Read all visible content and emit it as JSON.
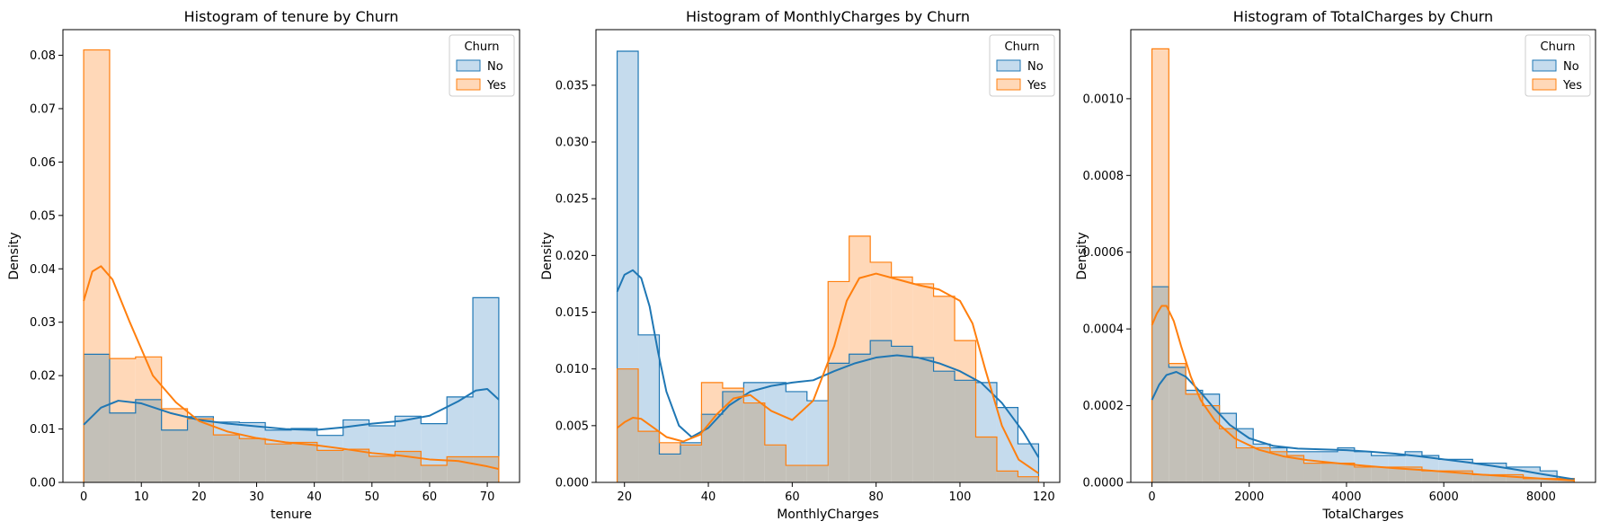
{
  "colors": {
    "no": "#1f77b4",
    "yes": "#ff7f0e",
    "no_fill": "#c5dbed",
    "yes_fill": "#ffd8b8",
    "overlap_fill": "#c3c0b8"
  },
  "chart_data": [
    {
      "type": "histogram",
      "title": "Histogram of tenure by Churn",
      "xlabel": "tenure",
      "ylabel": "Density",
      "xlim": [
        -3.6,
        75.6
      ],
      "ylim": [
        0,
        0.0848
      ],
      "xticks": [
        0,
        10,
        20,
        30,
        40,
        50,
        60,
        70
      ],
      "yticks": [
        0.0,
        0.01,
        0.02,
        0.03,
        0.04,
        0.05,
        0.06,
        0.07,
        0.08
      ],
      "ytick_decimals": 2,
      "legend": {
        "title": "Churn",
        "entries": [
          "No",
          "Yes"
        ],
        "position": "top-right"
      },
      "series": [
        {
          "name": "No",
          "color": "#1f77b4",
          "bins": [
            0,
            4.5,
            9,
            13.5,
            18,
            22.5,
            27,
            31.5,
            36,
            40.5,
            45,
            49.5,
            54,
            58.5,
            63,
            67.5,
            72
          ],
          "density": [
            0.024,
            0.013,
            0.0155,
            0.0098,
            0.0123,
            0.0113,
            0.0112,
            0.0098,
            0.0101,
            0.0088,
            0.0117,
            0.0106,
            0.0124,
            0.011,
            0.016,
            0.0346
          ],
          "kde_x": [
            0,
            3,
            6,
            10,
            15,
            20,
            25,
            30,
            35,
            40,
            45,
            50,
            55,
            60,
            65,
            68,
            70,
            72
          ],
          "kde_y": [
            0.0108,
            0.014,
            0.0153,
            0.0148,
            0.013,
            0.0117,
            0.011,
            0.0105,
            0.01,
            0.0098,
            0.0103,
            0.011,
            0.0115,
            0.0125,
            0.0152,
            0.0172,
            0.0175,
            0.0155
          ]
        },
        {
          "name": "Yes",
          "color": "#ff7f0e",
          "bins": [
            0,
            4.5,
            9,
            13.5,
            18,
            22.5,
            27,
            31.5,
            36,
            40.5,
            45,
            49.5,
            54,
            58.5,
            63,
            67.5,
            72
          ],
          "density": [
            0.081,
            0.0232,
            0.0235,
            0.0138,
            0.0119,
            0.0089,
            0.0082,
            0.0072,
            0.0075,
            0.006,
            0.0062,
            0.0049,
            0.0058,
            0.0032,
            0.0048,
            0.0048
          ],
          "kde_x": [
            0,
            1.5,
            3,
            5,
            8,
            12,
            16,
            20,
            25,
            30,
            35,
            40,
            45,
            50,
            55,
            60,
            65,
            70,
            72
          ],
          "kde_y": [
            0.034,
            0.0395,
            0.0405,
            0.038,
            0.03,
            0.02,
            0.015,
            0.0115,
            0.0095,
            0.0083,
            0.0075,
            0.007,
            0.0063,
            0.0055,
            0.005,
            0.0043,
            0.004,
            0.003,
            0.0025
          ]
        }
      ]
    },
    {
      "type": "histogram",
      "title": "Histogram of MonthlyCharges by Churn",
      "xlabel": "MonthlyCharges",
      "ylabel": "Density",
      "xlim": [
        13.2,
        123.8
      ],
      "ylim": [
        0,
        0.0399
      ],
      "xticks": [
        20,
        40,
        60,
        80,
        100,
        120
      ],
      "yticks": [
        0.0,
        0.005,
        0.01,
        0.015,
        0.02,
        0.025,
        0.03,
        0.035
      ],
      "ytick_decimals": 3,
      "legend": {
        "title": "Churn",
        "entries": [
          "No",
          "Yes"
        ],
        "position": "top-right"
      },
      "series": [
        {
          "name": "No",
          "color": "#1f77b4",
          "bins": [
            18.25,
            23.28,
            28.31,
            33.34,
            38.37,
            43.4,
            48.43,
            53.46,
            58.49,
            63.52,
            68.55,
            73.58,
            78.61,
            83.64,
            88.67,
            93.7,
            98.73,
            103.76,
            108.79,
            113.82,
            118.75
          ],
          "density": [
            0.038,
            0.013,
            0.0025,
            0.0035,
            0.006,
            0.008,
            0.0088,
            0.0088,
            0.008,
            0.0072,
            0.0105,
            0.0113,
            0.0125,
            0.012,
            0.011,
            0.0098,
            0.009,
            0.0088,
            0.0066,
            0.0034
          ],
          "kde_x": [
            18.25,
            20,
            22,
            24,
            26,
            28,
            30,
            33,
            36,
            40,
            45,
            50,
            55,
            60,
            65,
            70,
            75,
            80,
            85,
            90,
            95,
            100,
            105,
            110,
            115,
            118.75
          ],
          "kde_y": [
            0.0168,
            0.0183,
            0.0187,
            0.018,
            0.0155,
            0.0115,
            0.008,
            0.005,
            0.004,
            0.0048,
            0.0068,
            0.008,
            0.0085,
            0.0088,
            0.009,
            0.0098,
            0.0105,
            0.011,
            0.0112,
            0.011,
            0.0105,
            0.0098,
            0.0088,
            0.007,
            0.0045,
            0.0022
          ]
        },
        {
          "name": "Yes",
          "color": "#ff7f0e",
          "bins": [
            18.25,
            23.28,
            28.31,
            33.34,
            38.37,
            43.4,
            48.43,
            53.46,
            58.49,
            63.52,
            68.55,
            73.58,
            78.61,
            83.64,
            88.67,
            93.7,
            98.73,
            103.76,
            108.79,
            113.82,
            118.75
          ],
          "density": [
            0.01,
            0.0045,
            0.0035,
            0.0033,
            0.0088,
            0.0083,
            0.007,
            0.0033,
            0.0015,
            0.0015,
            0.0177,
            0.0217,
            0.0194,
            0.0181,
            0.0175,
            0.0164,
            0.0125,
            0.004,
            0.001,
            0.0005
          ],
          "kde_x": [
            18.25,
            20,
            22,
            24,
            27,
            30,
            34,
            38,
            42,
            46,
            50,
            55,
            60,
            65,
            70,
            73,
            76,
            80,
            85,
            90,
            95,
            100,
            103,
            106,
            110,
            114,
            118.75
          ],
          "kde_y": [
            0.0048,
            0.0053,
            0.0057,
            0.0056,
            0.0048,
            0.004,
            0.0036,
            0.0042,
            0.006,
            0.0074,
            0.0077,
            0.0063,
            0.0055,
            0.0072,
            0.012,
            0.016,
            0.018,
            0.0184,
            0.0179,
            0.0174,
            0.017,
            0.016,
            0.014,
            0.01,
            0.005,
            0.002,
            0.0008
          ]
        }
      ]
    },
    {
      "type": "histogram",
      "title": "Histogram of TotalCharges by Churn",
      "xlabel": "TotalCharges",
      "ylabel": "Density",
      "xlim": [
        -435,
        9120
      ],
      "ylim": [
        0,
        0.00118
      ],
      "xticks": [
        0,
        2000,
        4000,
        6000,
        8000
      ],
      "yticks": [
        0.0,
        0.0002,
        0.0004,
        0.0006,
        0.0008,
        0.001
      ],
      "ytick_decimals": 4,
      "legend": {
        "title": "Churn",
        "entries": [
          "No",
          "Yes"
        ],
        "position": "top-right"
      },
      "series": [
        {
          "name": "No",
          "color": "#1f77b4",
          "bins": [
            0,
            347,
            694,
            1041,
            1388,
            1735,
            2082,
            2429,
            2776,
            3123,
            3470,
            3817,
            4164,
            4511,
            4858,
            5205,
            5552,
            5899,
            6246,
            6593,
            6940,
            7287,
            7634,
            7981,
            8328,
            8684
          ],
          "density": [
            0.00051,
            0.0003,
            0.00024,
            0.00023,
            0.00018,
            0.00014,
            0.0001,
            9e-05,
            8e-05,
            8e-05,
            8e-05,
            9e-05,
            8e-05,
            7e-05,
            7e-05,
            8e-05,
            7e-05,
            6e-05,
            6e-05,
            5e-05,
            5e-05,
            4e-05,
            4e-05,
            3e-05,
            1e-05
          ],
          "kde_x": [
            0,
            150,
            300,
            500,
            700,
            1000,
            1300,
            1600,
            2000,
            2500,
            3000,
            3500,
            4000,
            4500,
            5000,
            5500,
            6000,
            6500,
            7000,
            7500,
            8000,
            8684
          ],
          "kde_y": [
            0.000215,
            0.000255,
            0.00028,
            0.000288,
            0.000275,
            0.000235,
            0.00019,
            0.00015,
            0.000115,
            9.5e-05,
            8.8e-05,
            8.6e-05,
            8.4e-05,
            8e-05,
            7.5e-05,
            6.8e-05,
            6e-05,
            5.2e-05,
            4.3e-05,
            3.3e-05,
            2.2e-05,
            8e-06
          ]
        },
        {
          "name": "Yes",
          "color": "#ff7f0e",
          "bins": [
            0,
            347,
            694,
            1041,
            1388,
            1735,
            2082,
            2429,
            2776,
            3123,
            3470,
            3817,
            4164,
            4511,
            4858,
            5205,
            5552,
            5899,
            6246,
            6593,
            6940,
            7287,
            7634,
            7981,
            8328,
            8684
          ],
          "density": [
            0.00113,
            0.00031,
            0.00023,
            0.0002,
            0.00014,
            9e-05,
            9e-05,
            8e-05,
            7e-05,
            5e-05,
            5e-05,
            5e-05,
            4e-05,
            4e-05,
            4e-05,
            4e-05,
            3e-05,
            3e-05,
            3e-05,
            2e-05,
            2e-05,
            2e-05,
            1e-05,
            1e-05,
            1e-05
          ],
          "kde_x": [
            0,
            100,
            200,
            300,
            450,
            600,
            800,
            1000,
            1300,
            1700,
            2200,
            2700,
            3200,
            3800,
            4400,
            5000,
            5600,
            6200,
            6800,
            7400,
            8000,
            8684
          ],
          "kde_y": [
            0.00041,
            0.00044,
            0.00046,
            0.00046,
            0.00042,
            0.000355,
            0.000275,
            0.000215,
            0.00016,
            0.000115,
            8.5e-05,
            6.8e-05,
            5.8e-05,
            5e-05,
            4.3e-05,
            3.7e-05,
            3.2e-05,
            2.6e-05,
            2e-05,
            1.5e-05,
            1e-05,
            5e-06
          ]
        }
      ]
    }
  ]
}
